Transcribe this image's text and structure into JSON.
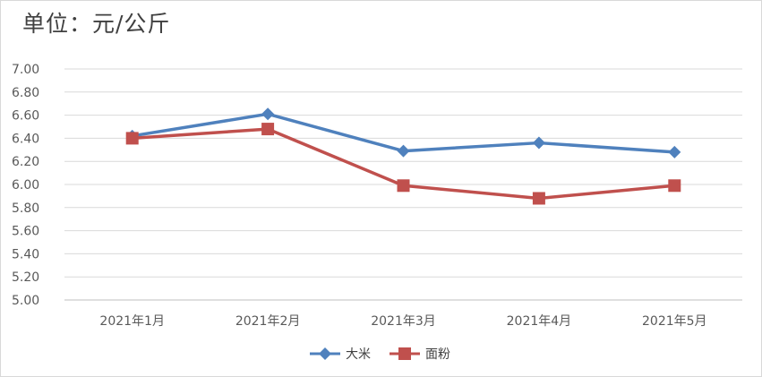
{
  "unit_label": "单位：元/公斤",
  "chart_data": {
    "type": "line",
    "categories": [
      "2021年1月",
      "2021年2月",
      "2021年3月",
      "2021年4月",
      "2021年5月"
    ],
    "ylim": [
      5.0,
      7.0
    ],
    "yticks": [
      "5.00",
      "5.20",
      "5.40",
      "5.60",
      "5.80",
      "6.00",
      "6.20",
      "6.40",
      "6.60",
      "6.80",
      "7.00"
    ],
    "grid": true,
    "legend_position": "bottom",
    "series": [
      {
        "name": "大米",
        "values": [
          6.42,
          6.61,
          6.29,
          6.36,
          6.28
        ],
        "color": "#4f81bd",
        "marker": "diamond"
      },
      {
        "name": "面粉",
        "values": [
          6.4,
          6.48,
          5.99,
          5.88,
          5.99
        ],
        "color": "#c0504d",
        "marker": "square"
      }
    ]
  }
}
